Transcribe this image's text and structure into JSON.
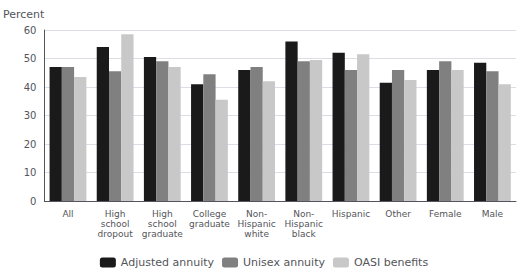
{
  "chart_data": {
    "type": "bar",
    "ylabel": "Percent",
    "categories": [
      "All",
      "High\nschool\ndropout",
      "High\nschool\ngraduate",
      "College\ngraduate",
      "Non-\nHispanic\nwhite",
      "Non-\nHispanic\nblack",
      "Hispanic",
      "Other",
      "Female",
      "Male"
    ],
    "series": [
      {
        "name": "Adjusted annuity",
        "color": "#1a1a1a",
        "values": [
          47.0,
          54.0,
          50.5,
          41.0,
          46.0,
          56.0,
          52.0,
          41.5,
          46.0,
          48.5
        ]
      },
      {
        "name": "Unisex annuity",
        "color": "#808080",
        "values": [
          47.0,
          45.5,
          49.0,
          44.5,
          47.0,
          49.0,
          46.0,
          46.0,
          49.0,
          45.5
        ]
      },
      {
        "name": "OASI benefits",
        "color": "#c8c8c8",
        "values": [
          43.5,
          58.5,
          47.0,
          35.5,
          42.0,
          49.5,
          51.5,
          42.5,
          46.0,
          41.0
        ]
      }
    ],
    "ylim": [
      0,
      60
    ],
    "yticks": [
      0,
      10,
      20,
      30,
      40,
      50,
      60
    ],
    "grid": true,
    "legend": "bottom"
  }
}
